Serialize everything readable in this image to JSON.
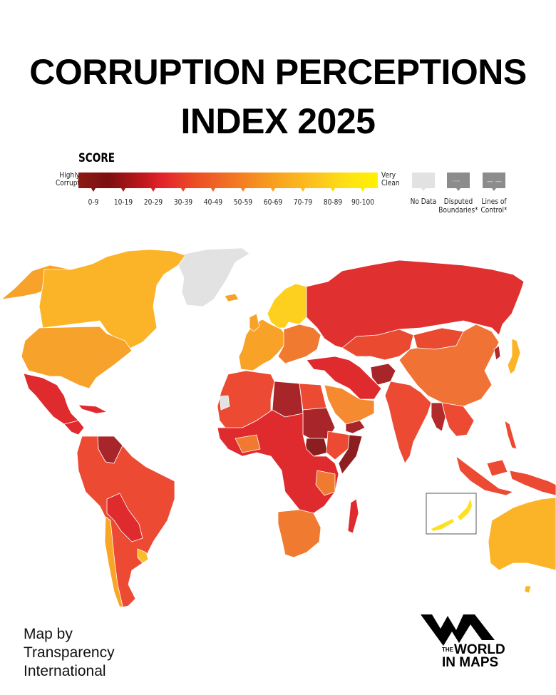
{
  "title": {
    "line1": "CORRUPTION PERCEPTIONS",
    "line2": "INDEX 2025"
  },
  "legend": {
    "heading": "SCORE",
    "left_label_1": "Highly",
    "left_label_2": "Corrupt",
    "right_label_1": "Very",
    "right_label_2": "Clean",
    "bins": [
      "0-9",
      "10-19",
      "20-29",
      "30-39",
      "40-49",
      "50-59",
      "60-69",
      "70-79",
      "80-89",
      "90-100"
    ],
    "bin_colors": [
      "#7c1010",
      "#a51a1c",
      "#d91f26",
      "#ea4328",
      "#ef6428",
      "#f4842a",
      "#f8a223",
      "#fbbd20",
      "#fdd81a",
      "#fff200"
    ],
    "special": [
      {
        "label_1": "No Data",
        "label_2": "",
        "color": "#e2e2e2",
        "icon": "none"
      },
      {
        "label_1": "Disputed",
        "label_2": "Boundaries*",
        "color": "#8c8c8c",
        "icon": "dotted-line"
      },
      {
        "label_1": "Lines of",
        "label_2": "Control*",
        "color": "#8c8c8c",
        "icon": "dashed-line"
      }
    ]
  },
  "map": {
    "regions": {
      "greenland": {
        "color": "#e2e2e2",
        "category": "No Data"
      },
      "canada": {
        "color": "#fbb428",
        "category": "70-79"
      },
      "usa": {
        "color": "#f7a22a",
        "category": "60-69"
      },
      "alaska": {
        "color": "#f7a22a",
        "category": "60-69"
      },
      "mexico": {
        "color": "#df2a2e",
        "category": "20-29"
      },
      "central_america": {
        "color": "#df2a2e",
        "category": "20-29"
      },
      "venezuela": {
        "color": "#a8262a",
        "category": "10-19"
      },
      "south_america": {
        "color": "#ec4a32",
        "category": "30-39"
      },
      "bolivia_paraguay": {
        "color": "#df2a2e",
        "category": "20-29"
      },
      "chile": {
        "color": "#f8a528",
        "category": "60-69"
      },
      "uruguay": {
        "color": "#fbbd28",
        "category": "70-79"
      },
      "scandinavia": {
        "color": "#fdd020",
        "category": "80-89"
      },
      "western_europe": {
        "color": "#f8a228",
        "category": "60-69"
      },
      "eastern_europe": {
        "color": "#f07a30",
        "category": "40-49"
      },
      "russia": {
        "color": "#e0302f",
        "category": "20-29"
      },
      "central_asia": {
        "color": "#ea4a30",
        "category": "30-39"
      },
      "china": {
        "color": "#f07234",
        "category": "40-49"
      },
      "mongolia": {
        "color": "#ea4a30",
        "category": "30-39"
      },
      "japan": {
        "color": "#fbb428",
        "category": "70-79"
      },
      "middle_east": {
        "color": "#df2a2e",
        "category": "20-29"
      },
      "saudi_arabia": {
        "color": "#f58a30",
        "category": "50-59"
      },
      "afghanistan": {
        "color": "#a8262a",
        "category": "10-19"
      },
      "india": {
        "color": "#ec4a32",
        "category": "30-39"
      },
      "myanmar": {
        "color": "#b22a2c",
        "category": "10-19"
      },
      "southeast_asia": {
        "color": "#ec4a32",
        "category": "30-39"
      },
      "north_africa": {
        "color": "#ec4a32",
        "category": "30-39"
      },
      "libya_sudan": {
        "color": "#a8262a",
        "category": "10-19"
      },
      "south_sudan_somalia": {
        "color": "#8c1e20",
        "category": "0-9"
      },
      "central_africa": {
        "color": "#df2a2e",
        "category": "20-29"
      },
      "southern_africa": {
        "color": "#f07a30",
        "category": "40-49"
      },
      "madagascar": {
        "color": "#df2a2e",
        "category": "20-29"
      },
      "australia": {
        "color": "#fbb428",
        "category": "70-79"
      },
      "new_zealand": {
        "color": "#fde020",
        "category": "80-89"
      },
      "western_sahara": {
        "color": "#e2e2e2",
        "category": "No Data"
      }
    },
    "inset_border_color": "#555555"
  },
  "credit": {
    "line1": "Map by",
    "line2": "Transparency",
    "line3": "International"
  },
  "logo": {
    "the": "THE",
    "line1": "WORLD",
    "line2": "IN MAPS"
  },
  "chart_data": {
    "type": "choropleth-map",
    "title": "Corruption Perceptions Index 2025",
    "legend_title": "SCORE",
    "scale": [
      "0-9",
      "10-19",
      "20-29",
      "30-39",
      "40-49",
      "50-59",
      "60-69",
      "70-79",
      "80-89",
      "90-100"
    ],
    "scale_endpoints": [
      "Highly Corrupt",
      "Very Clean"
    ],
    "extra_categories": [
      "No Data",
      "Disputed Boundaries*",
      "Lines of Control*"
    ],
    "approx_regions": [
      {
        "region": "Greenland",
        "bin": "No Data"
      },
      {
        "region": "Canada",
        "bin": "70-79"
      },
      {
        "region": "United States",
        "bin": "60-69"
      },
      {
        "region": "Mexico",
        "bin": "20-29"
      },
      {
        "region": "Venezuela",
        "bin": "10-19"
      },
      {
        "region": "Brazil",
        "bin": "30-39"
      },
      {
        "region": "Chile",
        "bin": "60-69"
      },
      {
        "region": "Uruguay",
        "bin": "70-79"
      },
      {
        "region": "Nordic countries",
        "bin": "80-89"
      },
      {
        "region": "Western Europe",
        "bin": "60-69"
      },
      {
        "region": "Russia",
        "bin": "20-29"
      },
      {
        "region": "China",
        "bin": "40-49"
      },
      {
        "region": "Japan",
        "bin": "70-79"
      },
      {
        "region": "India",
        "bin": "30-39"
      },
      {
        "region": "Saudi Arabia",
        "bin": "50-59"
      },
      {
        "region": "Afghanistan",
        "bin": "10-19"
      },
      {
        "region": "Libya",
        "bin": "10-19"
      },
      {
        "region": "Sudan",
        "bin": "10-19"
      },
      {
        "region": "South Sudan",
        "bin": "0-9"
      },
      {
        "region": "Somalia",
        "bin": "0-9"
      },
      {
        "region": "Australia",
        "bin": "70-79"
      },
      {
        "region": "New Zealand",
        "bin": "80-89"
      }
    ]
  }
}
